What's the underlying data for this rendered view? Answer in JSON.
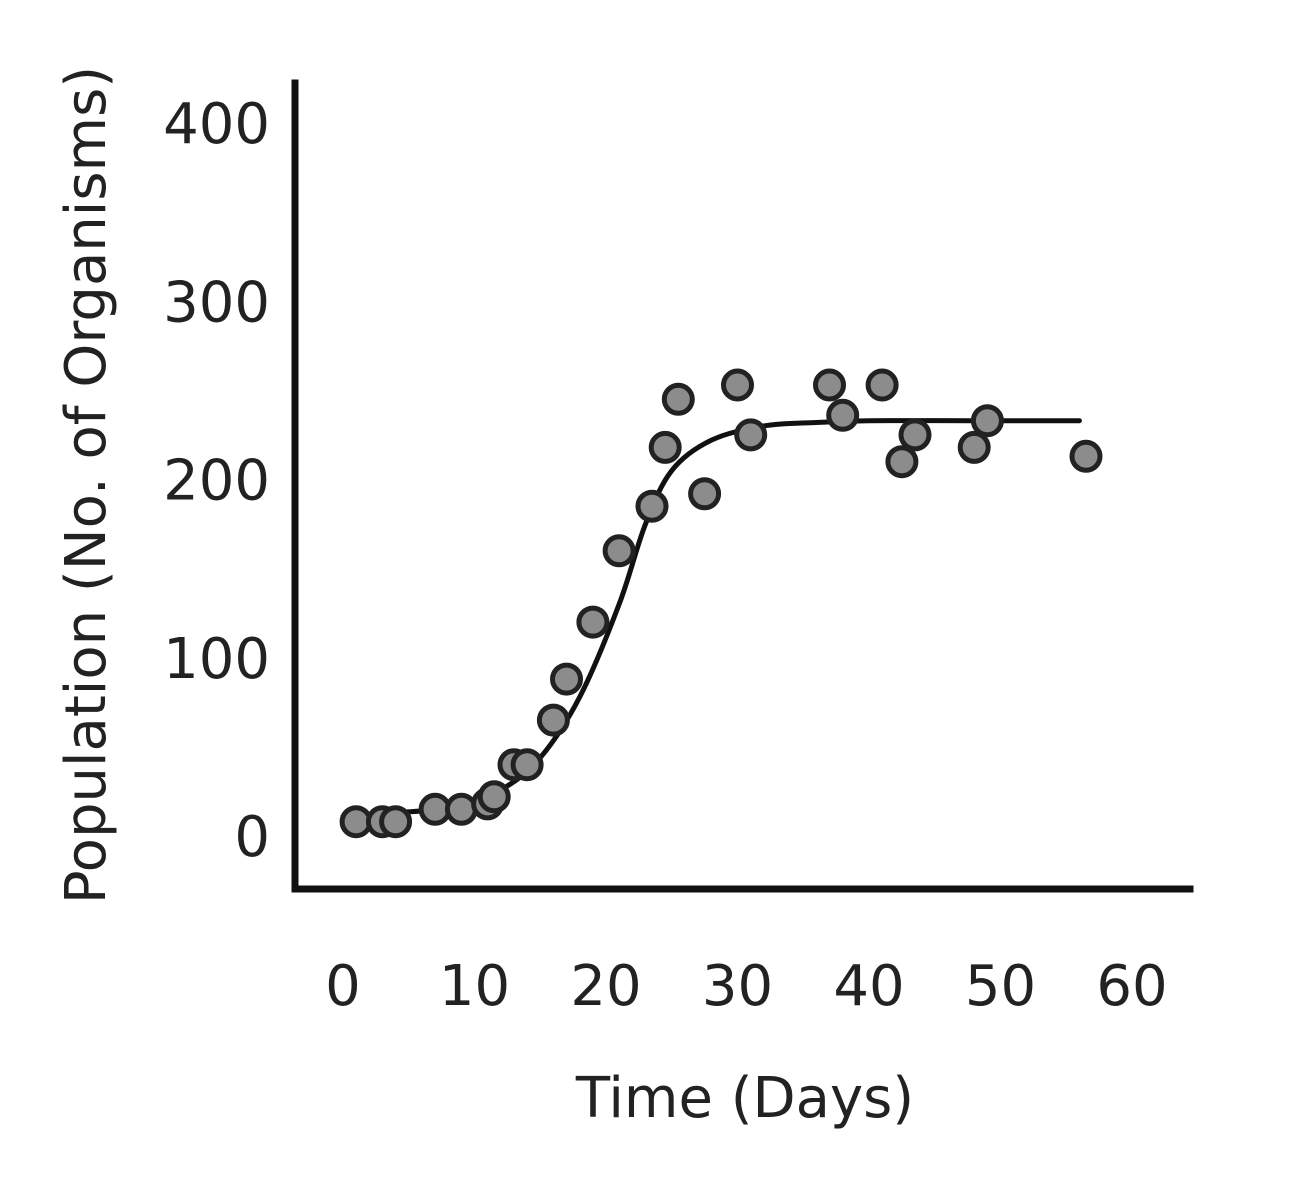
{
  "chart_data": {
    "type": "scatter",
    "title": "",
    "xlabel": "Time (Days)",
    "ylabel": "Population (No. of Organisms)",
    "xlim": [
      0,
      60
    ],
    "ylim": [
      0,
      400
    ],
    "x_ticks": [
      "0",
      "10",
      "20",
      "30",
      "40",
      "50",
      "60"
    ],
    "y_ticks": [
      "0",
      "100",
      "200",
      "300",
      "400"
    ],
    "grid": false,
    "legend": "none",
    "colors": {
      "points": "#8c8c8c",
      "point_edge": "#222222",
      "line": "#111111",
      "axes": "#111111"
    },
    "series": [
      {
        "type": "scatter",
        "points": [
          {
            "x": 1,
            "y": 8
          },
          {
            "x": 3,
            "y": 8
          },
          {
            "x": 4,
            "y": 8
          },
          {
            "x": 7,
            "y": 15
          },
          {
            "x": 9,
            "y": 15
          },
          {
            "x": 11,
            "y": 18
          },
          {
            "x": 11.5,
            "y": 22
          },
          {
            "x": 13,
            "y": 40
          },
          {
            "x": 14,
            "y": 40
          },
          {
            "x": 16,
            "y": 65
          },
          {
            "x": 17,
            "y": 88
          },
          {
            "x": 19,
            "y": 120
          },
          {
            "x": 21,
            "y": 160
          },
          {
            "x": 23.5,
            "y": 185
          },
          {
            "x": 24.5,
            "y": 218
          },
          {
            "x": 25.5,
            "y": 245
          },
          {
            "x": 27.5,
            "y": 192
          },
          {
            "x": 30,
            "y": 253
          },
          {
            "x": 31,
            "y": 225
          },
          {
            "x": 37,
            "y": 253
          },
          {
            "x": 38,
            "y": 236
          },
          {
            "x": 41,
            "y": 253
          },
          {
            "x": 42.5,
            "y": 210
          },
          {
            "x": 43.5,
            "y": 225
          },
          {
            "x": 48,
            "y": 218
          },
          {
            "x": 49,
            "y": 233
          },
          {
            "x": 56.5,
            "y": 213
          }
        ]
      },
      {
        "type": "line",
        "curve": "logistic",
        "points": [
          {
            "x": 0,
            "y": 11
          },
          {
            "x": 4,
            "y": 13
          },
          {
            "x": 8,
            "y": 16
          },
          {
            "x": 12,
            "y": 26
          },
          {
            "x": 15,
            "y": 44
          },
          {
            "x": 18,
            "y": 78
          },
          {
            "x": 21,
            "y": 130
          },
          {
            "x": 23,
            "y": 175
          },
          {
            "x": 25,
            "y": 205
          },
          {
            "x": 28,
            "y": 222
          },
          {
            "x": 32,
            "y": 230
          },
          {
            "x": 36,
            "y": 232
          },
          {
            "x": 40,
            "y": 233
          },
          {
            "x": 48,
            "y": 233
          },
          {
            "x": 56,
            "y": 233
          }
        ]
      }
    ]
  }
}
